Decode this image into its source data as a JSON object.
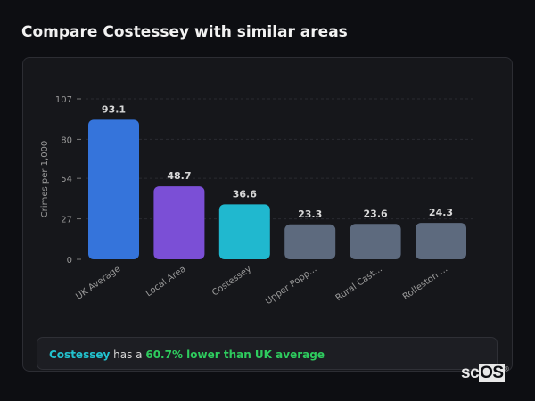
{
  "title": "Compare Costessey with similar areas",
  "chart_data": {
    "type": "bar",
    "categories": [
      "UK Average",
      "Local Area",
      "Costessey",
      "Upper Popp...",
      "Rural Cast...",
      "Rolleston ..."
    ],
    "values": [
      93.1,
      48.7,
      36.6,
      23.3,
      23.6,
      24.3
    ],
    "value_labels": [
      "93.1",
      "48.7",
      "36.6",
      "23.3",
      "23.6",
      "24.3"
    ],
    "colors": [
      "#3574db",
      "#7b4fd6",
      "#20b8cf",
      "#5d6a7e",
      "#5d6a7e",
      "#5d6a7e"
    ],
    "ylabel": "Crimes per 1,000",
    "xlabel": "",
    "yticks": [
      0,
      27,
      54,
      80,
      107
    ],
    "ylim": [
      0,
      107
    ],
    "grid": "horizontal-dashed"
  },
  "summary": {
    "area": "Costessey",
    "middle": " has a ",
    "highlight": "60.7% lower than UK average"
  },
  "logo": {
    "text_a": "sc",
    "text_b": "OS",
    "mark": "®"
  }
}
